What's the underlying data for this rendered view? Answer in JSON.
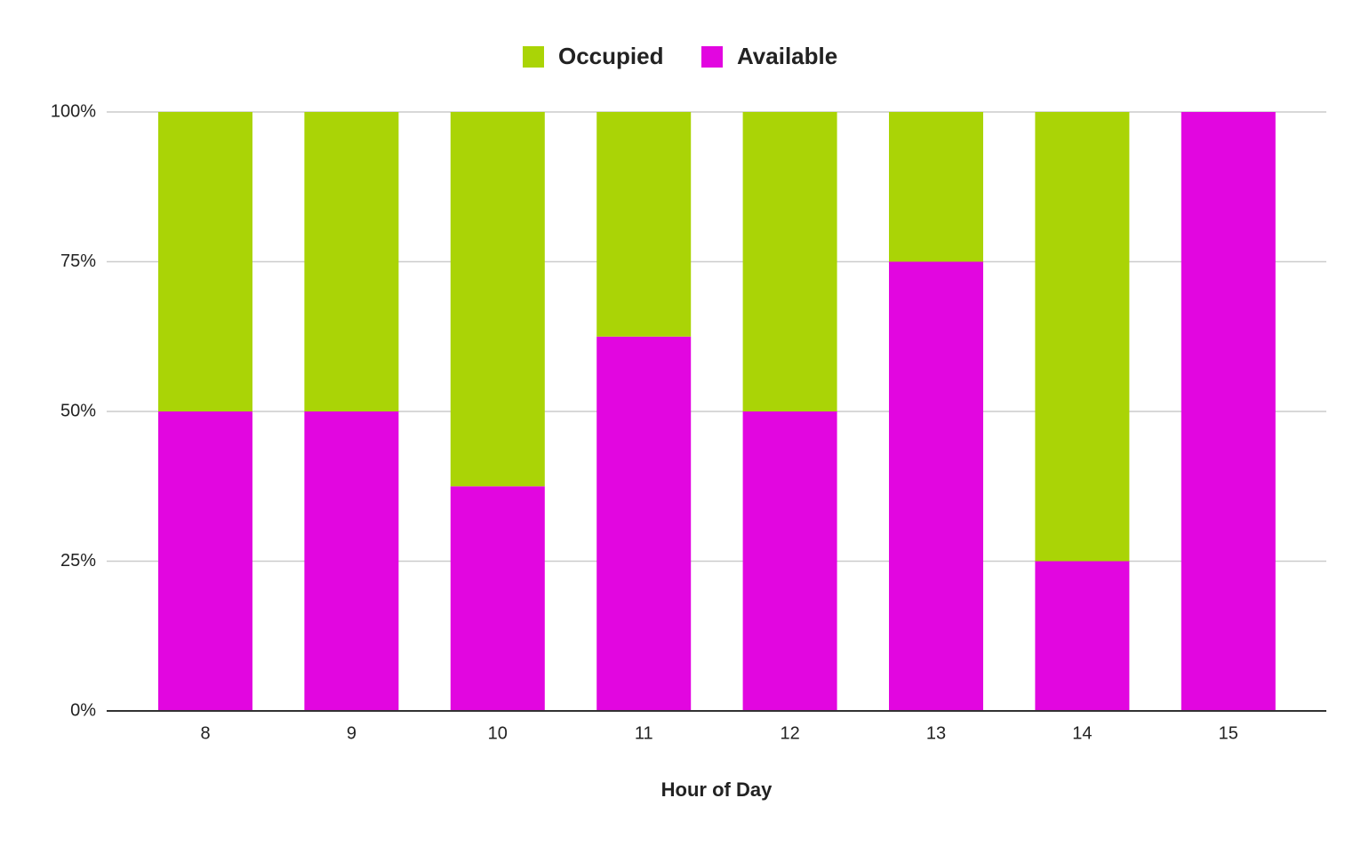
{
  "chart_data": {
    "type": "stacked_bar",
    "x_label": "Hour of Day",
    "categories": [
      "8",
      "9",
      "10",
      "11",
      "12",
      "13",
      "14",
      "15"
    ],
    "series": [
      {
        "name": "Occupied",
        "color": "#aad406",
        "values": [
          50,
          50,
          62.5,
          37.5,
          50,
          25,
          75,
          0
        ]
      },
      {
        "name": "Available",
        "color": "#e206e0",
        "values": [
          50,
          50,
          37.5,
          62.5,
          50,
          75,
          25,
          100
        ]
      }
    ],
    "ylim": [
      0,
      100
    ],
    "yticks": [
      {
        "value": 0,
        "label": "0%"
      },
      {
        "value": 25,
        "label": "25%"
      },
      {
        "value": 50,
        "label": "50%"
      },
      {
        "value": 75,
        "label": "75%"
      },
      {
        "value": 100,
        "label": "100%"
      }
    ],
    "grid": true,
    "legend": "top"
  }
}
